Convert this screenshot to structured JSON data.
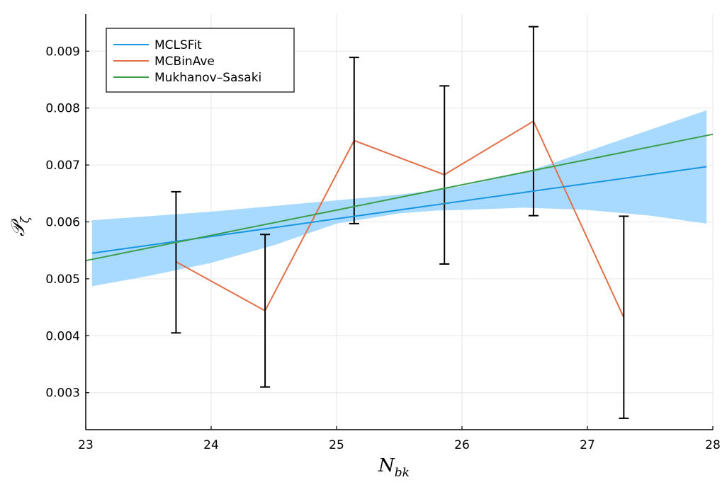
{
  "chart_data": {
    "type": "line",
    "title": "",
    "xlabel": "N",
    "xlabel_sub": "bk",
    "ylabel": "𝒫",
    "ylabel_sub": "ζ",
    "xlim": [
      23,
      28
    ],
    "ylim": [
      0.00235,
      0.00965
    ],
    "xticks": [
      23,
      24,
      25,
      26,
      27,
      28
    ],
    "xtick_labels": [
      "23",
      "24",
      "25",
      "26",
      "27",
      "28"
    ],
    "yticks": [
      0.003,
      0.004,
      0.005,
      0.006,
      0.007,
      0.008,
      0.009
    ],
    "ytick_labels": [
      "0.003",
      "0.004",
      "0.005",
      "0.006",
      "0.007",
      "0.008",
      "0.009"
    ],
    "grid": true,
    "legend_position": "top-left",
    "colors": {
      "mclsfit": "#1a96e0",
      "band": "#a8daff",
      "mcbinave": "#e0704a",
      "mukhanov": "#3c9e4a",
      "errorbar": "#000000",
      "axis": "#000000",
      "grid": "#e6e6e6"
    },
    "series": [
      {
        "name": "MCLSFit",
        "key": "mclsfit",
        "x": [
          23.05,
          27.95
        ],
        "y": [
          0.00545,
          0.00697
        ]
      },
      {
        "name": "MCBinAve",
        "key": "mcbinave",
        "x": [
          23.72,
          24.43,
          25.14,
          25.86,
          26.57,
          27.29
        ],
        "y": [
          0.0053,
          0.00444,
          0.00743,
          0.00683,
          0.00777,
          0.00432
        ],
        "err_low": [
          0.00405,
          0.0031,
          0.00597,
          0.00526,
          0.00611,
          0.00255
        ],
        "err_high": [
          0.00653,
          0.00578,
          0.00889,
          0.00839,
          0.00943,
          0.0061
        ]
      },
      {
        "name": "Mukhanov–Sasaki",
        "key": "mukhanov",
        "x": [
          23.0,
          28.0
        ],
        "y": [
          0.00532,
          0.00754
        ]
      }
    ],
    "confidence_band": {
      "series": "MCLSFit",
      "x": [
        23.05,
        23.5,
        24.0,
        24.5,
        25.0,
        25.5,
        25.8,
        26.0,
        26.5,
        27.0,
        27.5,
        27.95
      ],
      "upper": [
        0.00603,
        0.0061,
        0.00618,
        0.00628,
        0.00638,
        0.00648,
        0.00656,
        0.00663,
        0.00687,
        0.00724,
        0.00762,
        0.00796
      ],
      "lower": [
        0.00487,
        0.00505,
        0.00528,
        0.00559,
        0.00597,
        0.00615,
        0.0062,
        0.00621,
        0.00625,
        0.00621,
        0.00611,
        0.00597
      ]
    }
  }
}
